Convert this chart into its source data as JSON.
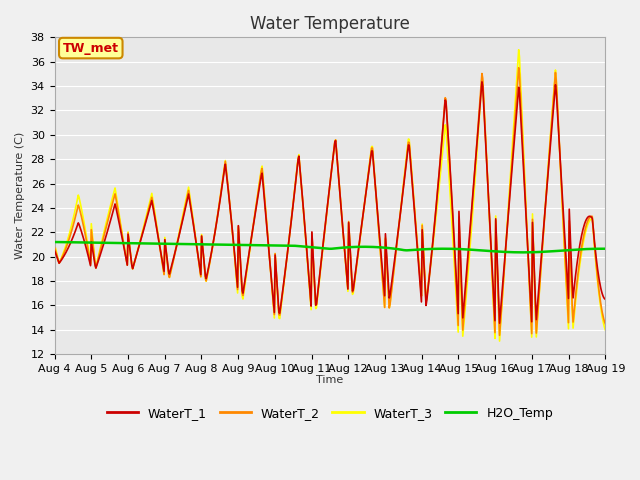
{
  "title": "Water Temperature",
  "ylabel": "Water Temperature (C)",
  "xlabel": "Time",
  "annotation": "TW_met",
  "annotation_color": "#cc0000",
  "annotation_bg": "#ffff99",
  "annotation_border": "#cc8800",
  "ylim": [
    12,
    38
  ],
  "yticks": [
    12,
    14,
    16,
    18,
    20,
    22,
    24,
    26,
    28,
    30,
    32,
    34,
    36,
    38
  ],
  "xtick_labels": [
    "Aug 4",
    "Aug 5",
    "Aug 6",
    "Aug 7",
    "Aug 8",
    "Aug 9",
    "Aug 10",
    "Aug 11",
    "Aug 12",
    "Aug 13",
    "Aug 14",
    "Aug 15",
    "Aug 16",
    "Aug 17",
    "Aug 18",
    "Aug 19"
  ],
  "line_colors": {
    "WaterT_1": "#cc0000",
    "WaterT_2": "#ff8800",
    "WaterT_3": "#ffff00",
    "H2O_Temp": "#00cc00"
  },
  "line_widths": {
    "WaterT_1": 1.2,
    "WaterT_2": 1.2,
    "WaterT_3": 1.2,
    "H2O_Temp": 1.8
  },
  "plot_bg": "#e8e8e8",
  "fig_bg": "#f0f0f0",
  "grid_color": "#ffffff",
  "title_fontsize": 12,
  "axis_fontsize": 8,
  "tick_fontsize": 8,
  "legend_fontsize": 9
}
